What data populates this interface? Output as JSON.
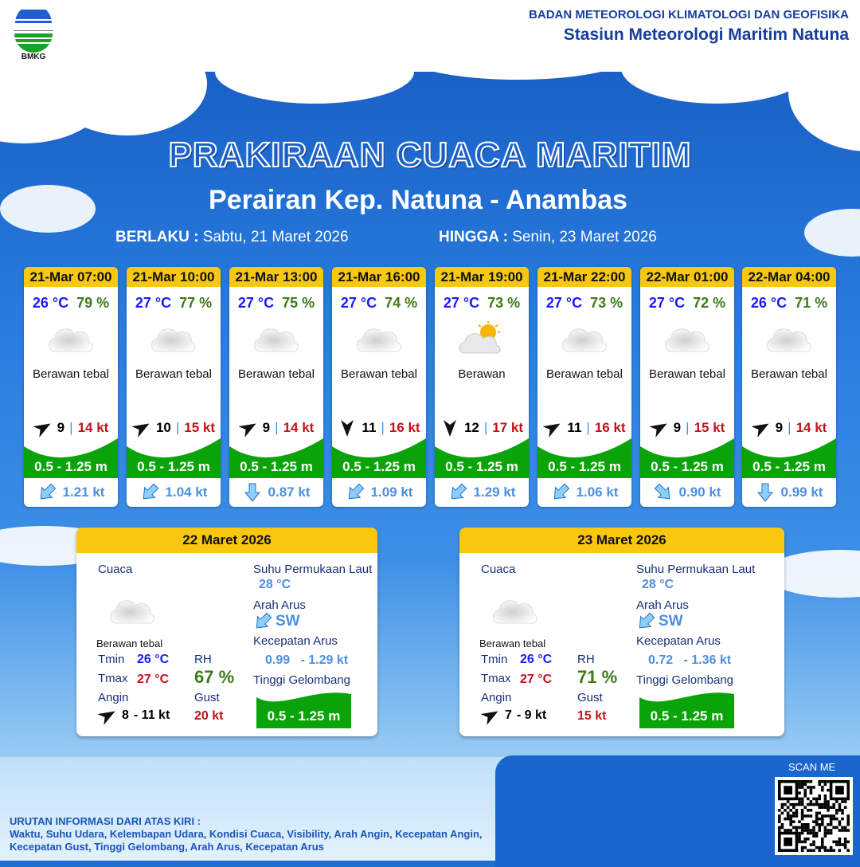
{
  "header": {
    "logo_text": "BMKG",
    "org": "BADAN METEOROLOGI KLIMATOLOGI DAN GEOFISIKA",
    "station": "Stasiun Meteorologi Maritim Natuna"
  },
  "title": "PRAKIRAAN CUACA MARITIM",
  "subtitle": "Perairan Kep. Natuna - Anambas",
  "validity": {
    "from_label": "BERLAKU :",
    "from": "Sabtu, 21 Maret 2026",
    "to_label": "HINGGA :",
    "to": "Senin, 23 Maret 2026"
  },
  "forecasts": [
    {
      "time": "21-Mar 07:00",
      "temp": "26 °C",
      "rh": "79 %",
      "icon": "cloudy-icon",
      "weather": "Berawan tebal",
      "wind_dir_deg": 60,
      "wind": "9",
      "gust": "14 kt",
      "wave": "0.5 - 1.25 m",
      "current_dir_deg": 225,
      "current": "1.21 kt"
    },
    {
      "time": "21-Mar 10:00",
      "temp": "27 °C",
      "rh": "77 %",
      "icon": "cloudy-icon",
      "weather": "Berawan tebal",
      "wind_dir_deg": 60,
      "wind": "10",
      "gust": "15 kt",
      "wave": "0.5 - 1.25 m",
      "current_dir_deg": 225,
      "current": "1.04 kt"
    },
    {
      "time": "21-Mar 13:00",
      "temp": "27 °C",
      "rh": "75 %",
      "icon": "cloudy-icon",
      "weather": "Berawan tebal",
      "wind_dir_deg": 60,
      "wind": "9",
      "gust": "14 kt",
      "wave": "0.5 - 1.25 m",
      "current_dir_deg": 180,
      "current": "0.87 kt"
    },
    {
      "time": "21-Mar 16:00",
      "temp": "27 °C",
      "rh": "74 %",
      "icon": "cloudy-icon",
      "weather": "Berawan tebal",
      "wind_dir_deg": 180,
      "wind": "11",
      "gust": "16 kt",
      "wave": "0.5 - 1.25 m",
      "current_dir_deg": 225,
      "current": "1.09 kt"
    },
    {
      "time": "21-Mar 19:00",
      "temp": "27 °C",
      "rh": "73 %",
      "icon": "partly-cloudy-icon",
      "weather": "Berawan",
      "wind_dir_deg": 180,
      "wind": "12",
      "gust": "17 kt",
      "wave": "0.5 - 1.25 m",
      "current_dir_deg": 225,
      "current": "1.29 kt"
    },
    {
      "time": "21-Mar 22:00",
      "temp": "27 °C",
      "rh": "73 %",
      "icon": "cloudy-icon",
      "weather": "Berawan tebal",
      "wind_dir_deg": 60,
      "wind": "11",
      "gust": "16 kt",
      "wave": "0.5 - 1.25 m",
      "current_dir_deg": 225,
      "current": "1.06 kt"
    },
    {
      "time": "22-Mar 01:00",
      "temp": "27 °C",
      "rh": "72 %",
      "icon": "cloudy-icon",
      "weather": "Berawan tebal",
      "wind_dir_deg": 60,
      "wind": "9",
      "gust": "15 kt",
      "wave": "0.5 - 1.25 m",
      "current_dir_deg": 135,
      "current": "0.90 kt"
    },
    {
      "time": "22-Mar 04:00",
      "temp": "26 °C",
      "rh": "71 %",
      "icon": "cloudy-icon",
      "weather": "Berawan tebal",
      "wind_dir_deg": 60,
      "wind": "9",
      "gust": "14 kt",
      "wave": "0.5 - 1.25 m",
      "current_dir_deg": 180,
      "current": "0.99 kt"
    }
  ],
  "labels": {
    "cuaca": "Cuaca",
    "sst": "Suhu Permukaan Laut",
    "arah": "Arah Arus",
    "kec": "Kecepatan Arus",
    "tinggi": "Tinggi Gelombang",
    "tmin": "Tmin",
    "tmax": "Tmax",
    "rh": "RH",
    "angin": "Angin",
    "gust": "Gust"
  },
  "daily": [
    {
      "date": "22 Maret 2026",
      "weather": "Berawan tebal",
      "tmin": "26 °C",
      "tmax": "27 °C",
      "rh": "67 %",
      "wind_min": "8",
      "wind_max": "- 11 kt",
      "gust": "20 kt",
      "sst": "28 °C",
      "current_dir": "SW",
      "current_min": "0.99",
      "current_max": "- 1.29 kt",
      "wave": "0.5 - 1.25 m"
    },
    {
      "date": "23 Maret 2026",
      "weather": "Berawan tebal",
      "tmin": "26 °C",
      "tmax": "27 °C",
      "rh": "71 %",
      "wind_min": "7",
      "wind_max": "- 9 kt",
      "gust": "15 kt",
      "sst": "28 °C",
      "current_dir": "SW",
      "current_min": "0.72",
      "current_max": "- 1.36 kt",
      "wave": "0.5 - 1.25 m"
    }
  ],
  "footer": {
    "title": "URUTAN INFORMASI DARI ATAS KIRI :",
    "text": "Waktu, Suhu Udara, Kelembapan Udara, Kondisi Cuaca, Visibility, Arah Angin, Kecepatan Angin, Kecepatan Gust, Tinggi Gelombang, Arah Arus, Kecepatan Arus",
    "scan": "SCAN ME"
  },
  "colors": {
    "header_yellow": "#f9c80e",
    "wave_green": "#0aa30a",
    "temp_blue": "#1a1aff",
    "rh_green": "#3d7a1a",
    "gust_red": "#c0141c",
    "current_blue": "#4a90e2"
  }
}
